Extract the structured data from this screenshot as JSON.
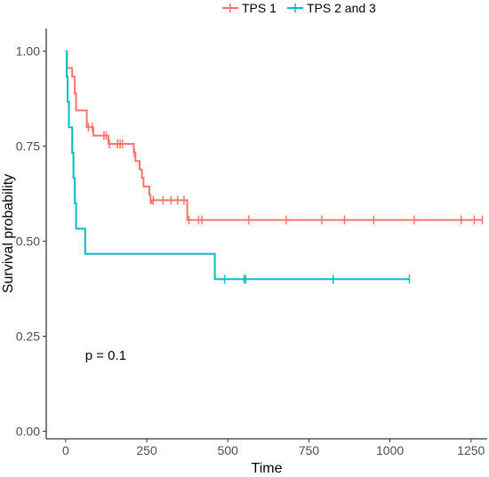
{
  "chart_data": {
    "type": "line",
    "xlabel": "Time",
    "ylabel": "Survival probability",
    "xlim": [
      -60,
      1300
    ],
    "ylim": [
      -0.02,
      1.06
    ],
    "x_ticks": [
      0,
      250,
      500,
      750,
      1000,
      1250
    ],
    "x_tick_labels": [
      "0",
      "250",
      "500",
      "750",
      "1000",
      "1250"
    ],
    "y_ticks": [
      0,
      0.25,
      0.5,
      0.75,
      1.0
    ],
    "y_tick_labels": [
      "0.00",
      "0.25",
      "0.50",
      "0.75",
      "1.00"
    ],
    "legend_position": "top",
    "grid": false,
    "annotation": "p = 0.1",
    "annotation_at": [
      60,
      0.2
    ],
    "series": [
      {
        "name": "TPS 1",
        "color": "#F8766D",
        "steps": [
          [
            0,
            1.0
          ],
          [
            4,
            0.956
          ],
          [
            20,
            0.933
          ],
          [
            28,
            0.889
          ],
          [
            32,
            0.844
          ],
          [
            65,
            0.8
          ],
          [
            85,
            0.778
          ],
          [
            132,
            0.756
          ],
          [
            210,
            0.733
          ],
          [
            215,
            0.711
          ],
          [
            228,
            0.689
          ],
          [
            235,
            0.667
          ],
          [
            240,
            0.644
          ],
          [
            258,
            0.622
          ],
          [
            262,
            0.6
          ],
          [
            265,
            0.608
          ],
          [
            375,
            0.556
          ],
          [
            1285,
            0.556
          ]
        ],
        "censor_times": [
          70,
          82,
          118,
          125,
          135,
          160,
          168,
          175,
          212,
          270,
          300,
          325,
          345,
          365,
          380,
          410,
          420,
          565,
          680,
          790,
          860,
          950,
          1075,
          1220,
          1260,
          1285
        ]
      },
      {
        "name": "TPS 2 and 3",
        "color": "#00BFC4",
        "steps": [
          [
            0,
            1.0
          ],
          [
            3,
            0.933
          ],
          [
            6,
            0.867
          ],
          [
            10,
            0.8
          ],
          [
            20,
            0.733
          ],
          [
            24,
            0.667
          ],
          [
            28,
            0.6
          ],
          [
            32,
            0.533
          ],
          [
            60,
            0.467
          ],
          [
            460,
            0.4
          ],
          [
            1060,
            0.4
          ]
        ],
        "censor_times": [
          490,
          550,
          555,
          825,
          1060
        ]
      }
    ]
  }
}
